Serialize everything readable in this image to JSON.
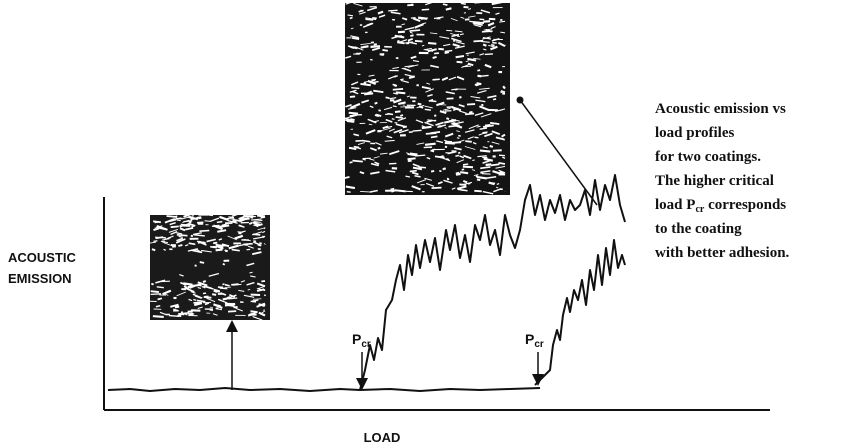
{
  "y_axis_label": [
    "ACOUSTIC",
    "EMISSION"
  ],
  "x_axis_label": "LOAD",
  "critical_markers": [
    {
      "main": "P",
      "sub": "cr"
    },
    {
      "main": "P",
      "sub": "cr"
    }
  ],
  "caption": {
    "line1": "Acoustic emission vs",
    "line2": "load profiles",
    "line3": "for two coatings.",
    "line4": "The higher critical",
    "line5": {
      "before": "load P",
      "sub": "cr",
      "after": " corresponds"
    },
    "line6": "to the coating",
    "line7": "with better adhesion."
  }
}
